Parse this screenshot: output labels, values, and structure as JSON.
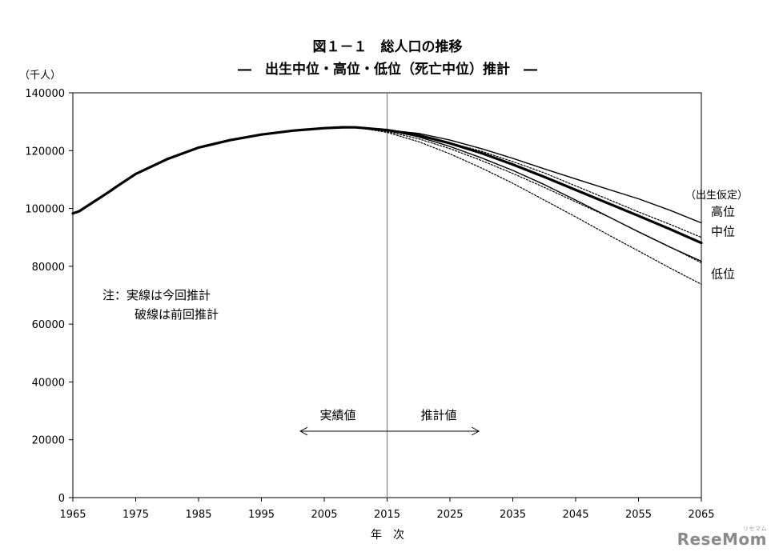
{
  "chart_data": {
    "type": "line",
    "title": "図１－１　総人口の推移",
    "subtitle": "―　出生中位・高位・低位（死亡中位）推計　―",
    "xlabel": "年　次",
    "ylabel": "（千人）",
    "xlim": [
      1965,
      2065
    ],
    "ylim": [
      0,
      140000
    ],
    "xticks": [
      1965,
      1975,
      1985,
      1995,
      2005,
      2015,
      2025,
      2035,
      2045,
      2055,
      2065
    ],
    "yticks": [
      0,
      20000,
      40000,
      60000,
      80000,
      100000,
      120000,
      140000
    ],
    "grid": false,
    "legend_title": "（出生仮定）",
    "note_lines": [
      "注：実線は今回推計",
      "破線は前回推計"
    ],
    "annotation_actual": "実績値",
    "annotation_projected": "推計値",
    "divider_year": 2015,
    "series": [
      {
        "name": "",
        "style": "solid-thick",
        "x": [
          1965,
          1966,
          1970,
          1971,
          1972,
          1975,
          1980,
          1985,
          1990,
          1995,
          2000,
          2005,
          2008,
          2010,
          2015
        ],
        "y": [
          98275,
          99036,
          104665,
          106100,
          107595,
          111940,
          117060,
          121049,
          123611,
          125570,
          126926,
          127768,
          128084,
          128057,
          127095
        ]
      },
      {
        "name": "高位",
        "style": "solid",
        "x": [
          2015,
          2020,
          2025,
          2030,
          2035,
          2040,
          2045,
          2050,
          2055,
          2060,
          2065
        ],
        "y": [
          127095,
          125963,
          123637,
          120691,
          117350,
          113681,
          110196,
          106735,
          103352,
          99379,
          95025
        ]
      },
      {
        "name": "中位",
        "style": "solid-thick",
        "x": [
          2015,
          2020,
          2025,
          2030,
          2035,
          2040,
          2045,
          2050,
          2055,
          2060,
          2065
        ],
        "y": [
          127095,
          125325,
          122544,
          119125,
          115216,
          110919,
          106421,
          101923,
          97441,
          92840,
          88077
        ]
      },
      {
        "name": "低位",
        "style": "solid",
        "x": [
          2015,
          2020,
          2025,
          2030,
          2035,
          2040,
          2045,
          2050,
          2055,
          2060,
          2065
        ],
        "y": [
          127095,
          124753,
          121446,
          117512,
          113152,
          108262,
          102891,
          97384,
          91886,
          86626,
          81750
        ]
      },
      {
        "name": "",
        "style": "dotted",
        "x": [
          2010,
          2015,
          2020,
          2025,
          2030,
          2035,
          2040,
          2045,
          2050,
          2055,
          2060,
          2065
        ],
        "y": [
          128057,
          126900,
          124900,
          122700,
          119800,
          116200,
          112300,
          107800,
          103300,
          98800,
          94500,
          90000
        ]
      },
      {
        "name": "",
        "style": "dotted",
        "x": [
          2010,
          2015,
          2020,
          2025,
          2030,
          2035,
          2040,
          2045,
          2050,
          2055,
          2060,
          2065
        ],
        "y": [
          128057,
          126600,
          124100,
          120700,
          116600,
          112100,
          107300,
          102300,
          97300,
          92000,
          86700,
          81200
        ]
      },
      {
        "name": "",
        "style": "dotted",
        "x": [
          2010,
          2015,
          2020,
          2025,
          2030,
          2035,
          2040,
          2045,
          2050,
          2055,
          2060,
          2065
        ],
        "y": [
          128057,
          126300,
          123100,
          118900,
          114000,
          108700,
          102900,
          97100,
          91100,
          85300,
          79400,
          73800
        ]
      }
    ]
  },
  "watermark": {
    "text": "ReseMom",
    "small_text": "リセマム"
  }
}
